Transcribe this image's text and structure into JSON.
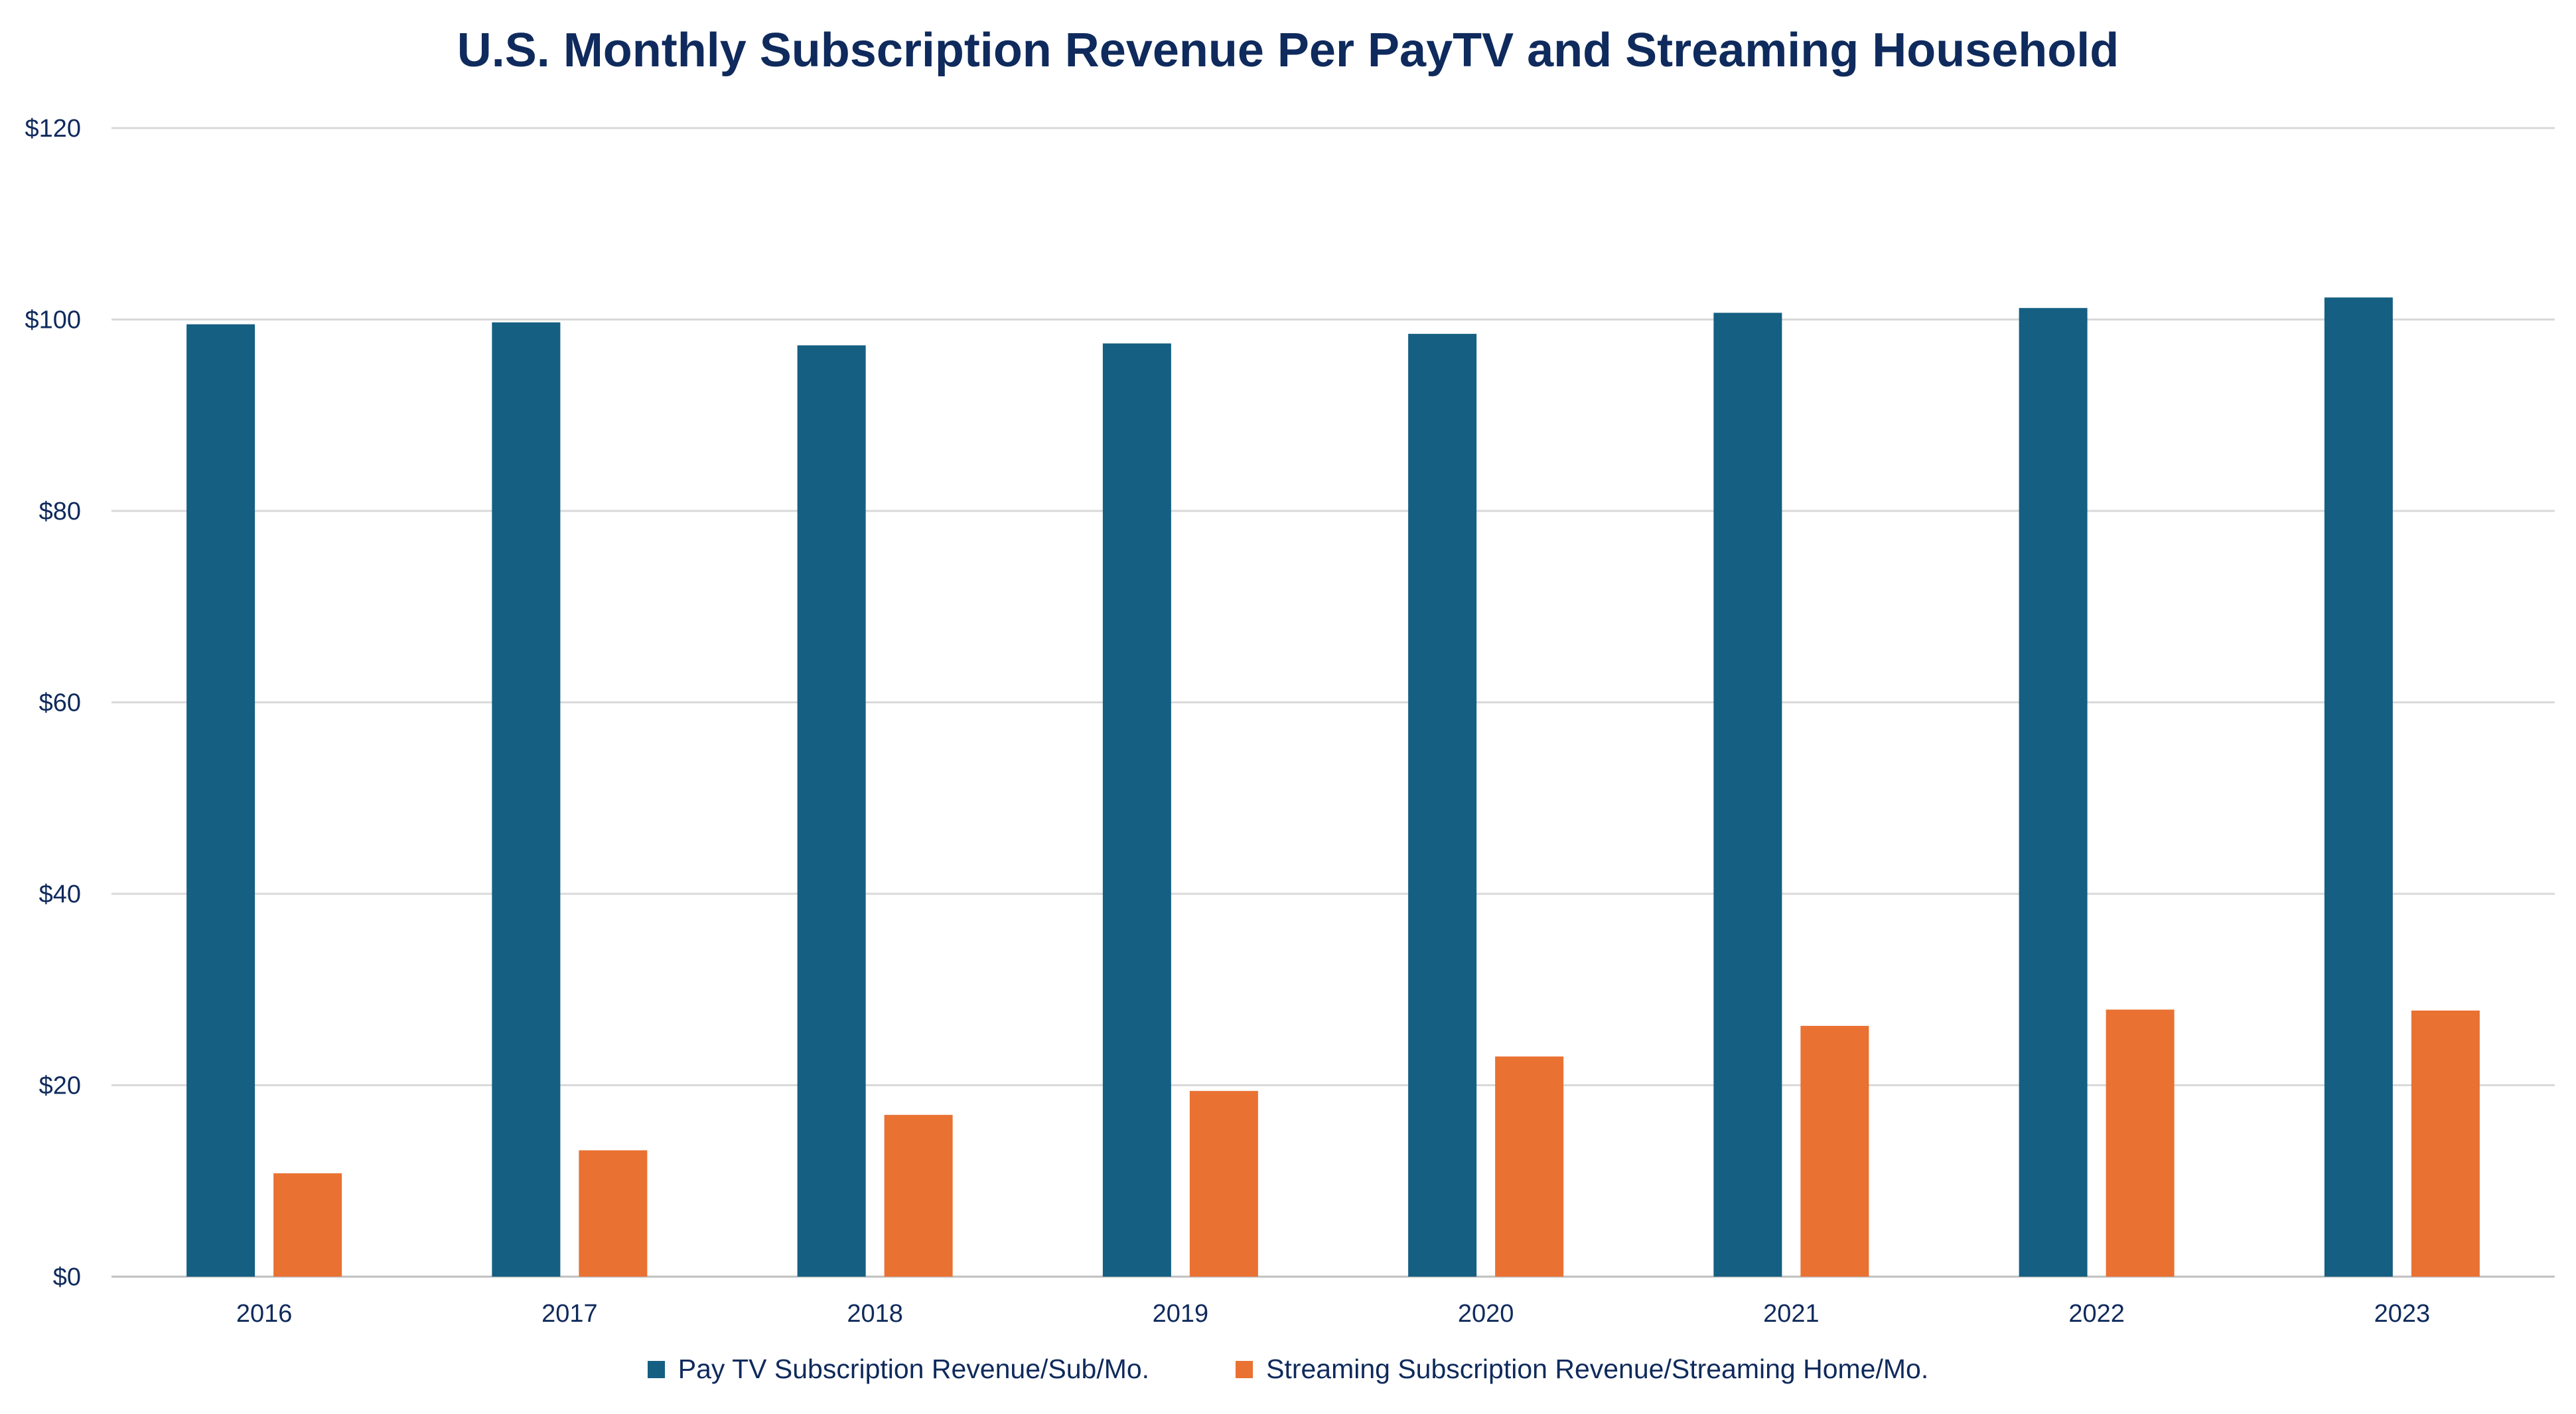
{
  "chart_data": {
    "type": "bar",
    "title": "U.S. Monthly Subscription Revenue Per PayTV and Streaming Household",
    "xlabel": "",
    "ylabel": "",
    "categories": [
      "2016",
      "2017",
      "2018",
      "2019",
      "2020",
      "2021",
      "2022",
      "2023"
    ],
    "series": [
      {
        "name": "Pay TV Subscription Revenue/Sub/Mo.",
        "color": "#155f82",
        "values": [
          99.5,
          99.7,
          97.3,
          97.5,
          98.5,
          100.7,
          101.2,
          102.3
        ]
      },
      {
        "name": "Streaming Subscription Revenue/Streaming Home/Mo.",
        "color": "#e97132",
        "values": [
          10.8,
          13.2,
          16.9,
          19.4,
          23.0,
          26.2,
          27.9,
          27.8
        ]
      }
    ],
    "ylim": [
      0,
      120
    ],
    "yticks": [
      0,
      20,
      40,
      60,
      80,
      100,
      120
    ],
    "ytick_labels": [
      "$0",
      "$20",
      "$40",
      "$60",
      "$80",
      "$100",
      "$120"
    ],
    "grid": true,
    "gridline_color": "#d9d9d9",
    "legend_position": "bottom"
  }
}
